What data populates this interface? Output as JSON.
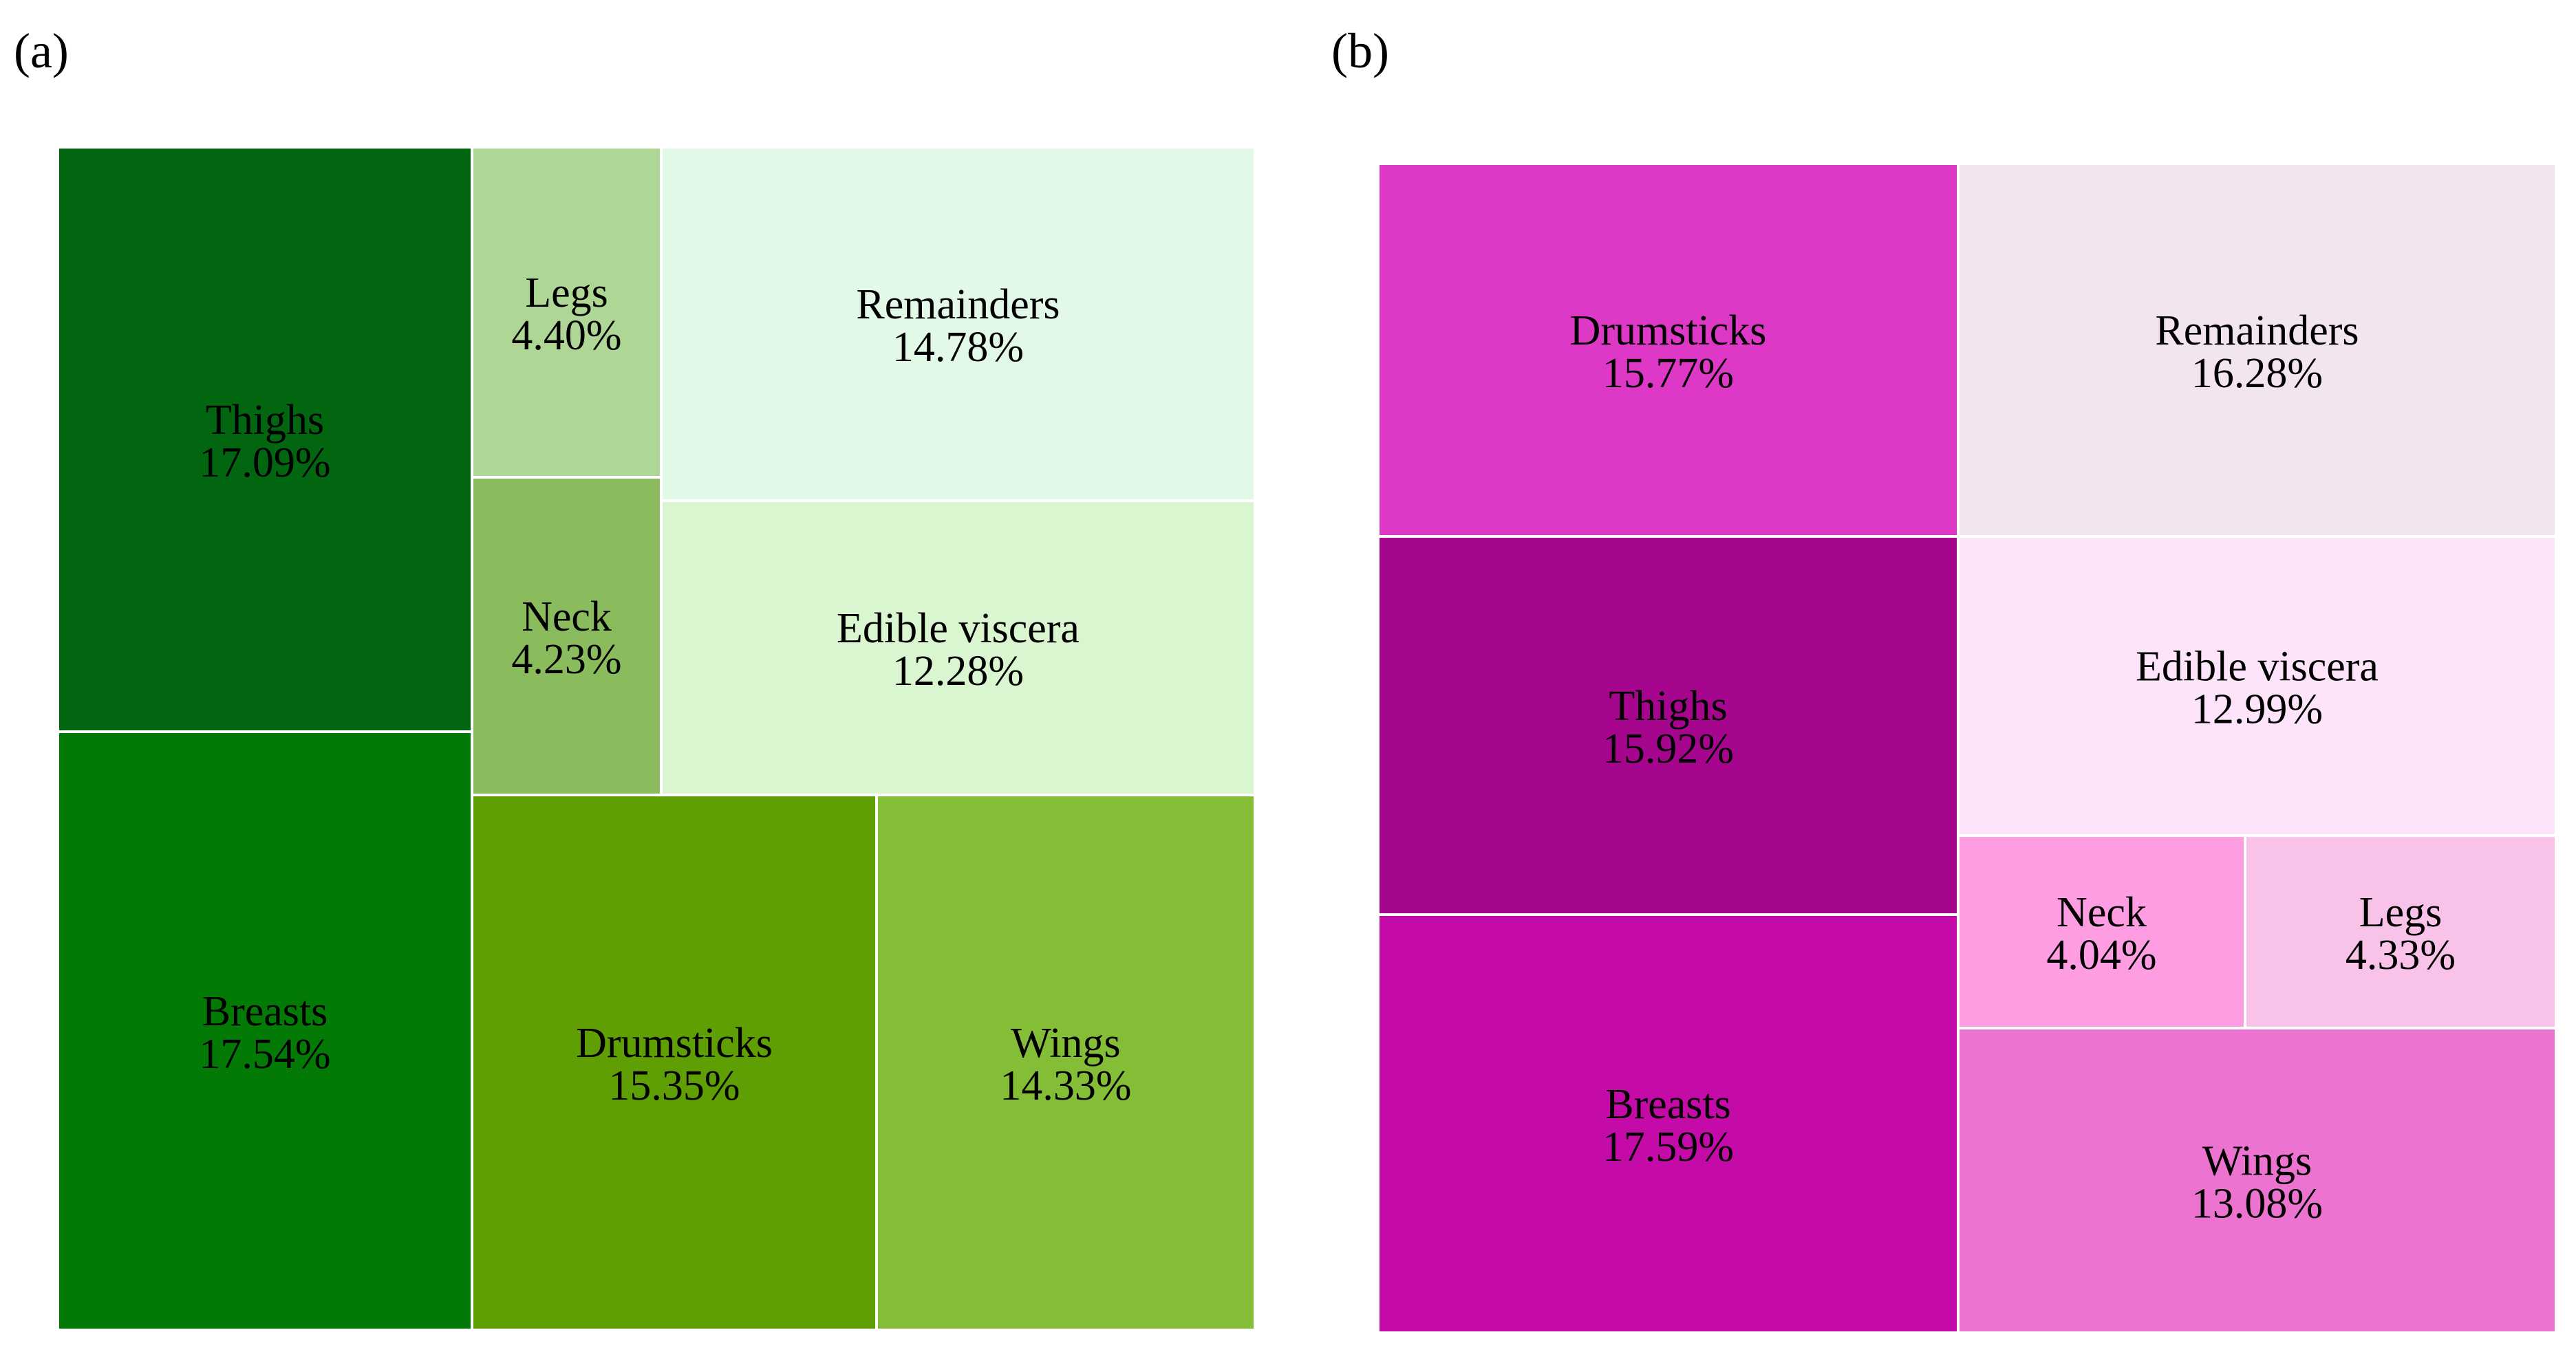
{
  "panels": {
    "a_label": "(a)",
    "b_label": "(b)"
  },
  "chart_data": [
    {
      "type": "treemap",
      "panel": "(a)",
      "title": "",
      "items": [
        {
          "name": "Thighs",
          "value": 17.09,
          "label": "17.09%",
          "color": "#026611"
        },
        {
          "name": "Breasts",
          "value": 17.54,
          "label": "17.54%",
          "color": "#027A05"
        },
        {
          "name": "Legs",
          "value": 4.4,
          "label": "4.40%",
          "color": "#AED694"
        },
        {
          "name": "Remainders",
          "value": 14.78,
          "label": "14.78%",
          "color": "#E1F9E6"
        },
        {
          "name": "Neck",
          "value": 4.23,
          "label": "4.23%",
          "color": "#8ABC5E"
        },
        {
          "name": "Edible viscera",
          "value": 12.28,
          "label": "12.28%",
          "color": "#DAF6D0"
        },
        {
          "name": "Drumsticks",
          "value": 15.35,
          "label": "15.35%",
          "color": "#5F9F03"
        },
        {
          "name": "Wings",
          "value": 14.33,
          "label": "14.33%",
          "color": "#84BE36"
        }
      ]
    },
    {
      "type": "treemap",
      "panel": "(b)",
      "title": "",
      "items": [
        {
          "name": "Drumsticks",
          "value": 15.77,
          "label": "15.77%",
          "color": "#DE38C6"
        },
        {
          "name": "Remainders",
          "value": 16.28,
          "label": "16.28%",
          "color": "#F3E5EE"
        },
        {
          "name": "Thighs",
          "value": 15.92,
          "label": "15.92%",
          "color": "#A5068D"
        },
        {
          "name": "Edible viscera",
          "value": 12.99,
          "label": "12.99%",
          "color": "#FEE4FB"
        },
        {
          "name": "Breasts",
          "value": 17.59,
          "label": "17.59%",
          "color": "#C40BA8"
        },
        {
          "name": "Neck",
          "value": 4.04,
          "label": "4.04%",
          "color": "#FE9DE2"
        },
        {
          "name": "Legs",
          "value": 4.33,
          "label": "4.33%",
          "color": "#F8C2E9"
        },
        {
          "name": "Wings",
          "value": 13.08,
          "label": "13.08%",
          "color": "#EC73CF"
        }
      ]
    }
  ]
}
